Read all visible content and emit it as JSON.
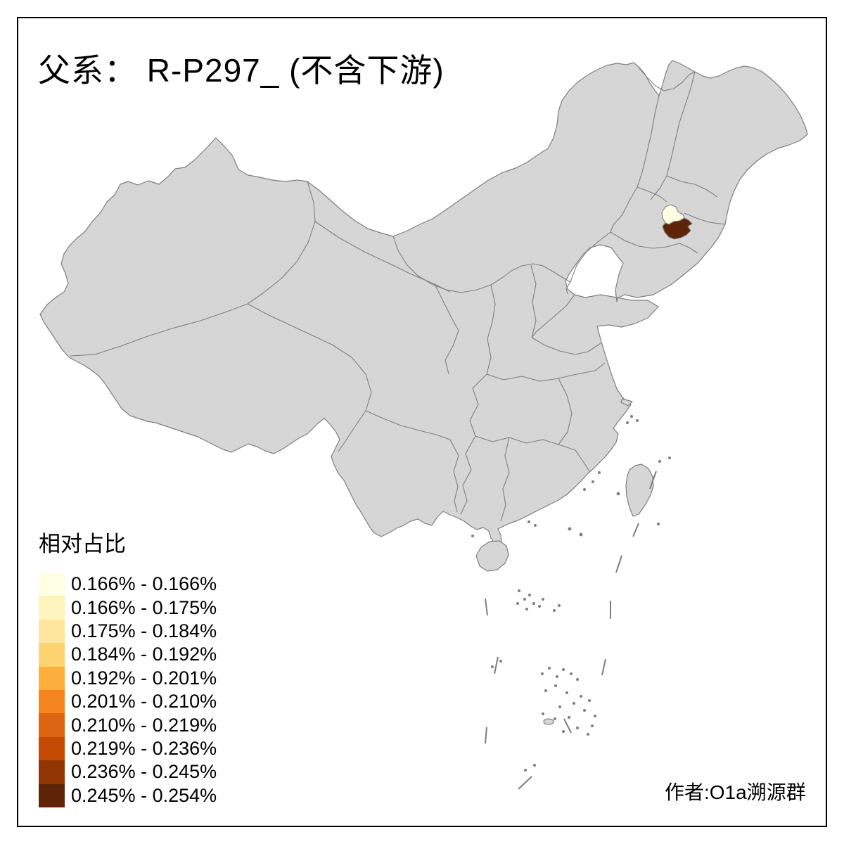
{
  "title": "父系： R-P297_ (不含下游)",
  "attribution": "作者:O1a溯源群",
  "legend": {
    "title": "相对占比",
    "entries": [
      {
        "label": "0.166% - 0.166%",
        "color": "#FFFFE3"
      },
      {
        "label": "0.166% - 0.175%",
        "color": "#FDF5BE"
      },
      {
        "label": "0.175% - 0.184%",
        "color": "#FEE79C"
      },
      {
        "label": "0.184% - 0.192%",
        "color": "#FDD271"
      },
      {
        "label": "0.192% - 0.201%",
        "color": "#FDAE3B"
      },
      {
        "label": "0.201% - 0.210%",
        "color": "#F5861F"
      },
      {
        "label": "0.210% - 0.219%",
        "color": "#DD6410"
      },
      {
        "label": "0.219% - 0.236%",
        "color": "#C44903"
      },
      {
        "label": "0.236% - 0.245%",
        "color": "#913503"
      },
      {
        "label": "0.245% - 0.254%",
        "color": "#5F2407"
      }
    ]
  },
  "map": {
    "land_fill": "#D6D6D6",
    "border_color": "#7E7E7E",
    "highlights": [
      {
        "name": "lowest-bin-prefecture",
        "bin": "0.166% - 0.166%",
        "color": "#FFFFE3"
      },
      {
        "name": "highest-bin-prefecture",
        "bin": "0.245% - 0.254%",
        "color": "#5F2407"
      }
    ]
  },
  "chart_data": {
    "type": "choropleth",
    "title": "父系： R-P297_ (不含下游)",
    "legend_title": "相对占比",
    "base_region_color": "#D6D6D6",
    "bins": [
      {
        "range": "0.166% - 0.166%",
        "color": "#FFFFE3"
      },
      {
        "range": "0.166% - 0.175%",
        "color": "#FDF5BE"
      },
      {
        "range": "0.175% - 0.184%",
        "color": "#FEE79C"
      },
      {
        "range": "0.184% - 0.192%",
        "color": "#FDD271"
      },
      {
        "range": "0.192% - 0.201%",
        "color": "#FDAE3B"
      },
      {
        "range": "0.201% - 0.210%",
        "color": "#F5861F"
      },
      {
        "range": "0.210% - 0.219%",
        "color": "#DD6410"
      },
      {
        "range": "0.219% - 0.236%",
        "color": "#C44903"
      },
      {
        "range": "0.236% - 0.245%",
        "color": "#913503"
      },
      {
        "range": "0.245% - 0.254%",
        "color": "#5F2407"
      }
    ],
    "highlighted_regions": [
      {
        "location": "northeast China prefecture (northwest of pair)",
        "bin": "0.166% - 0.166%",
        "color": "#FFFFE3"
      },
      {
        "location": "northeast China prefecture (southeast of pair)",
        "bin": "0.245% - 0.254%",
        "color": "#5F2407"
      }
    ],
    "annotations": [
      "作者:O1a溯源群"
    ]
  }
}
